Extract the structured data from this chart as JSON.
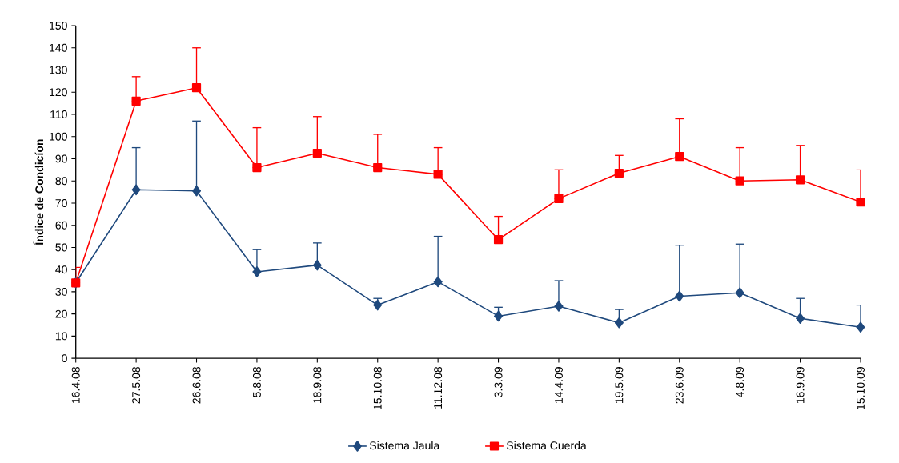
{
  "chart_data": {
    "type": "line",
    "ylabel": "Índice de Condicíon",
    "categories": [
      "16.4.08",
      "27.5.08",
      "26.6.08",
      "5.8.08",
      "18.9.08",
      "15.10.08",
      "11.12.08",
      "3.3.09",
      "14.4.09",
      "19.5.09",
      "23.6.09",
      "4.8.09",
      "16.9.09",
      "15.10.09"
    ],
    "series": [
      {
        "name": "Sistema Jaula",
        "color": "#1f497d",
        "marker": "diamond",
        "values": [
          34,
          76,
          75.5,
          39,
          42,
          24,
          34.5,
          19,
          23.5,
          16,
          28,
          29.5,
          18,
          14
        ],
        "errors": [
          null,
          [
            76,
            95
          ],
          [
            75.5,
            107
          ],
          [
            39,
            49
          ],
          [
            42,
            52
          ],
          [
            24,
            27
          ],
          [
            34.5,
            55
          ],
          [
            19,
            23
          ],
          [
            23.5,
            35
          ],
          [
            16,
            22
          ],
          [
            28,
            51
          ],
          [
            29.5,
            51.5
          ],
          [
            18,
            27
          ],
          [
            14,
            24
          ]
        ]
      },
      {
        "name": "Sistema Cuerda",
        "color": "#ff0000",
        "marker": "square",
        "values": [
          34,
          116,
          122,
          86,
          92.5,
          86,
          83,
          53.5,
          72,
          83.5,
          91,
          80,
          80.5,
          70.5
        ],
        "errors": [
          [
            34,
            41
          ],
          [
            116,
            127
          ],
          [
            122,
            140
          ],
          [
            86,
            104
          ],
          [
            92.5,
            109
          ],
          [
            86,
            101
          ],
          [
            83,
            95
          ],
          [
            53.5,
            64
          ],
          [
            72,
            85
          ],
          [
            83.5,
            91.5
          ],
          [
            91,
            108
          ],
          [
            80,
            95
          ],
          [
            80.5,
            96
          ],
          [
            70.5,
            85
          ]
        ]
      }
    ],
    "ylim": [
      0,
      150
    ],
    "yticks": [
      0,
      10,
      20,
      30,
      40,
      50,
      60,
      70,
      80,
      90,
      100,
      110,
      120,
      130,
      140,
      150
    ],
    "grid": false,
    "legend": "bottom",
    "line_style": "solid"
  }
}
